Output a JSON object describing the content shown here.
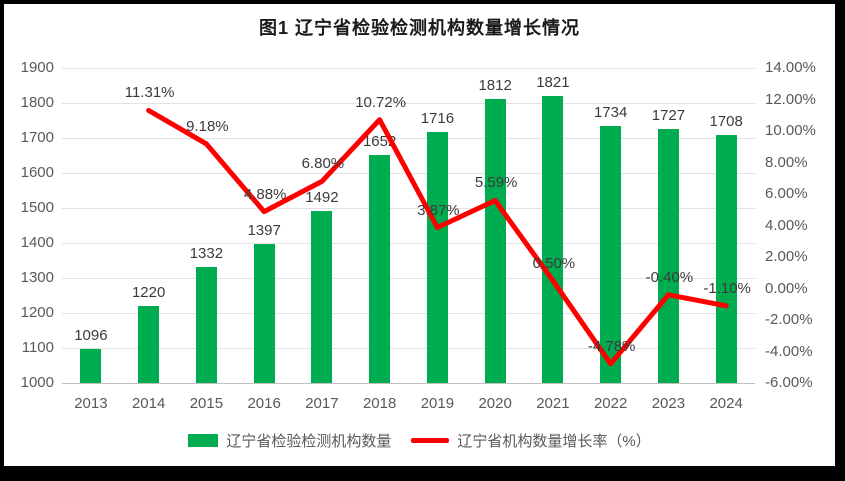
{
  "title": "图1 辽宁省检验检测机构数量增长情况",
  "colors": {
    "bar": "#00AC50",
    "line": "#FF0000",
    "grid": "#E2E2E2",
    "axis_line": "#BFBFBF",
    "axis_text": "#595959",
    "label_text": "#3b3b3b"
  },
  "chart_data": {
    "type": "combo bar+line, dual axis",
    "categories": [
      "2013",
      "2014",
      "2015",
      "2016",
      "2017",
      "2018",
      "2019",
      "2020",
      "2021",
      "2022",
      "2023",
      "2024"
    ],
    "series": [
      {
        "name": "辽宁省检验检测机构数量",
        "type": "bar",
        "axis": "left",
        "values": [
          1096,
          1220,
          1332,
          1397,
          1492,
          1652,
          1716,
          1812,
          1821,
          1734,
          1727,
          1708
        ],
        "labels": [
          "1096",
          "1220",
          "1332",
          "1397",
          "1492",
          "1652",
          "1716",
          "1812",
          "1821",
          "1734",
          "1727",
          "1708"
        ]
      },
      {
        "name": "辽宁省机构数量增长率（%）",
        "type": "line",
        "axis": "right",
        "values": [
          null,
          11.31,
          9.18,
          4.88,
          6.8,
          10.72,
          3.87,
          5.59,
          0.5,
          -4.78,
          -0.4,
          -1.1
        ],
        "labels": [
          null,
          "11.31%",
          "9.18%",
          "4.88%",
          "6.80%",
          "10.72%",
          "3.87%",
          "5.59%",
          "0.50%",
          "-4.78%",
          "-0.40%",
          "-1.10%"
        ]
      }
    ],
    "left_axis": {
      "min": 1000,
      "max": 1900,
      "step": 100,
      "ticks": [
        "1900",
        "1800",
        "1700",
        "1600",
        "1500",
        "1400",
        "1300",
        "1200",
        "1100",
        "1000"
      ]
    },
    "right_axis": {
      "min": -6,
      "max": 14,
      "step": 2,
      "ticks": [
        "14.00%",
        "12.00%",
        "10.00%",
        "8.00%",
        "6.00%",
        "4.00%",
        "2.00%",
        "0.00%",
        "-2.00%",
        "-4.00%",
        "-6.00%"
      ]
    },
    "grid": "horizontal gridlines on",
    "legend_position": "bottom"
  }
}
